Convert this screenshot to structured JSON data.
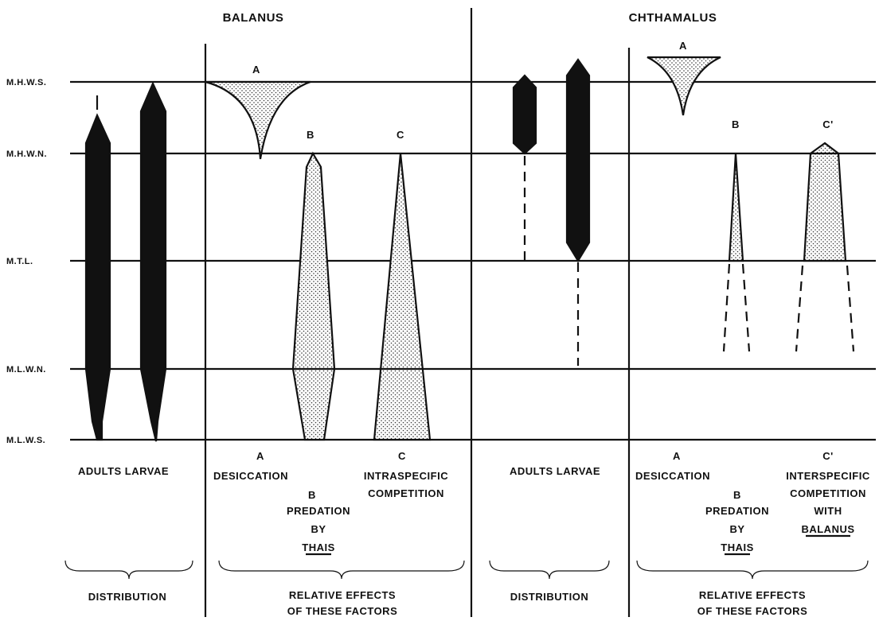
{
  "title_left": "BALANUS",
  "title_right": "CHTHAMALUS",
  "levels": [
    "M.H.W.S.",
    "M.H.W.N.",
    "M.T.L.",
    "M.L.W.N.",
    "M.L.W.S."
  ],
  "balanus": {
    "distribution_labels": "ADULTS  LARVAE",
    "factors": [
      {
        "letter": "A",
        "lines": [
          "DESICCATION"
        ]
      },
      {
        "letter": "B",
        "lines": [
          "PREDATION",
          "BY",
          "THAIS"
        ]
      },
      {
        "letter": "C",
        "lines": [
          "INTRASPECIFIC",
          "COMPETITION"
        ]
      }
    ],
    "distribution": "DISTRIBUTION",
    "effects": [
      "RELATIVE  EFFECTS",
      "OF  THESE  FACTORS"
    ]
  },
  "chthamalus": {
    "distribution_labels": "ADULTS  LARVAE",
    "factors": [
      {
        "letter": "A",
        "lines": [
          "DESICCATION"
        ]
      },
      {
        "letter": "B",
        "lines": [
          "PREDATION",
          "BY",
          "THAIS"
        ]
      },
      {
        "letter": "C'",
        "lines": [
          "INTERSPECIFIC",
          "COMPETITION",
          "WITH",
          "BALANUS"
        ]
      }
    ],
    "distribution": "DISTRIBUTION",
    "effects": [
      "RELATIVE  EFFECTS",
      "OF  THESE  FACTORS"
    ]
  }
}
